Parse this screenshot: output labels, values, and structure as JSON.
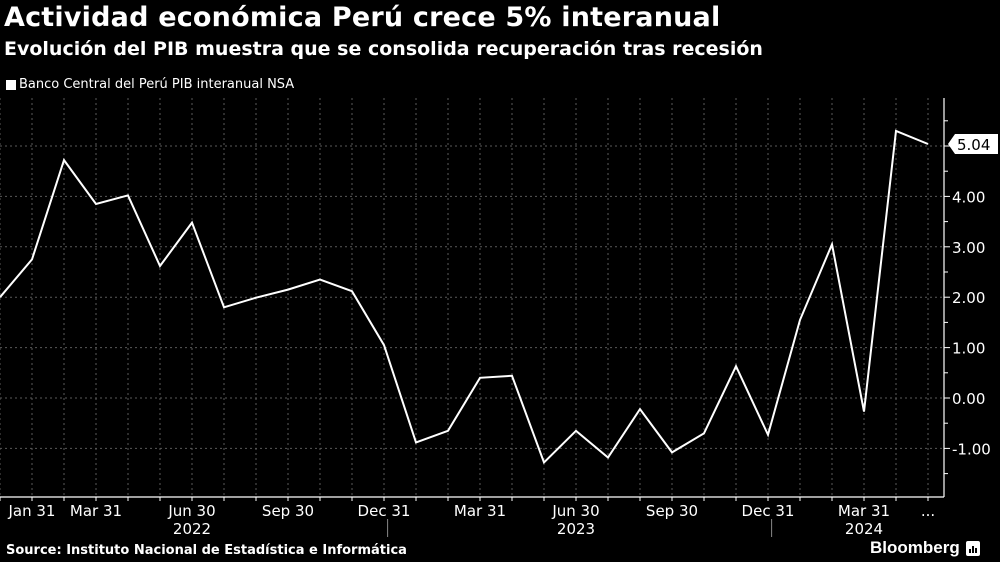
{
  "header": {
    "title": "Actividad económica Perú crece 5% interanual",
    "subtitle": "Evolución del PIB muestra que se consolida recuperación tras recesión"
  },
  "legend": {
    "label": "Banco Central del Perú PIB interanual NSA",
    "color": "#ffffff"
  },
  "footer": {
    "source": "Source: Instituto Nacional de Estadística e Informática",
    "brand": "Bloomberg"
  },
  "colors": {
    "background": "#000000",
    "line": "#ffffff",
    "grid": "#5a5a5a"
  },
  "chart_data": {
    "type": "line",
    "title": "Actividad económica Perú crece 5% interanual",
    "subtitle": "Evolución del PIB muestra que se consolida recuperación tras recesión",
    "xlabel": "",
    "ylabel": "",
    "ylim": [
      -1.8,
      5.9
    ],
    "y_ticks": [
      "5.00",
      "4.00",
      "3.00",
      "2.00",
      "1.00",
      "0.00",
      "-1.00"
    ],
    "y_tick_values": [
      5,
      4,
      3,
      2,
      1,
      0,
      -1
    ],
    "x_tick_labels": [
      {
        "label": "Jan 31",
        "index": 1
      },
      {
        "label": "Mar 31",
        "index": 3
      },
      {
        "label": "Jun 30",
        "index": 6
      },
      {
        "label": "Sep 30",
        "index": 9
      },
      {
        "label": "Dec 31",
        "index": 12
      },
      {
        "label": "Mar 31",
        "index": 15
      },
      {
        "label": "Jun 30",
        "index": 18
      },
      {
        "label": "Sep 30",
        "index": 21
      },
      {
        "label": "Dec 31",
        "index": 24
      },
      {
        "label": "Mar 31",
        "index": 27
      },
      {
        "label": "...",
        "index": 29
      }
    ],
    "year_labels": [
      {
        "label": "2022",
        "index": 6
      },
      {
        "label": "2023",
        "index": 18
      },
      {
        "label": "2024",
        "index": 27
      }
    ],
    "x": [
      "2021-12",
      "2022-01",
      "2022-02",
      "2022-03",
      "2022-04",
      "2022-05",
      "2022-06",
      "2022-07",
      "2022-08",
      "2022-09",
      "2022-10",
      "2022-11",
      "2022-12",
      "2023-01",
      "2023-02",
      "2023-03",
      "2023-04",
      "2023-05",
      "2023-06",
      "2023-07",
      "2023-08",
      "2023-09",
      "2023-10",
      "2023-11",
      "2023-12",
      "2024-01",
      "2024-02",
      "2024-03",
      "2024-04",
      "2024-05"
    ],
    "series": [
      {
        "name": "Banco Central del Perú PIB interanual NSA",
        "values": [
          2.0,
          2.75,
          4.72,
          3.85,
          4.02,
          2.62,
          3.48,
          1.8,
          1.99,
          2.15,
          2.35,
          2.12,
          1.05,
          -0.88,
          -0.65,
          0.4,
          0.44,
          -1.28,
          -0.65,
          -1.18,
          -0.22,
          -1.08,
          -0.7,
          0.63,
          -0.73,
          1.55,
          3.05,
          -0.27,
          5.3,
          5.04
        ]
      }
    ],
    "last_value_label": "5.04",
    "grid": true,
    "legend_position": "top-left"
  }
}
